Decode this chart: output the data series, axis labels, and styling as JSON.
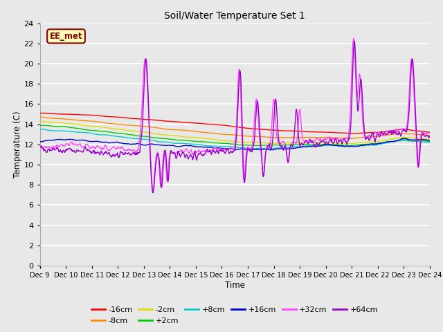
{
  "title": "Soil/Water Temperature Set 1",
  "xlabel": "Time",
  "ylabel": "Temperature (C)",
  "xlim": [
    0,
    15
  ],
  "ylim": [
    0,
    24
  ],
  "yticks": [
    0,
    2,
    4,
    6,
    8,
    10,
    12,
    14,
    16,
    18,
    20,
    22,
    24
  ],
  "xtick_labels": [
    "Dec 9",
    "Dec 10",
    "Dec 11",
    "Dec 12",
    "Dec 13",
    "Dec 14",
    "Dec 15",
    "Dec 16",
    "Dec 17",
    "Dec 18",
    "Dec 19",
    "Dec 20",
    "Dec 21",
    "Dec 22",
    "Dec 23",
    "Dec 24"
  ],
  "plot_bg": "#e8e8e8",
  "fig_bg": "#e8e8e8",
  "grid_color": "#ffffff",
  "series_colors": {
    "-16cm": "#ff0000",
    "-8cm": "#ff8800",
    "-2cm": "#dddd00",
    "+2cm": "#00cc00",
    "+8cm": "#00cccc",
    "+16cm": "#0000cc",
    "+32cm": "#ff44ff",
    "+64cm": "#9900cc"
  },
  "annotation_text": "EE_met",
  "annotation_bg": "#ffffbb",
  "annotation_border": "#880000",
  "legend_row1": [
    "-16cm",
    "-8cm",
    "-2cm",
    "+2cm",
    "+8cm",
    "+16cm"
  ],
  "legend_row2": [
    "+32cm",
    "+64cm"
  ]
}
